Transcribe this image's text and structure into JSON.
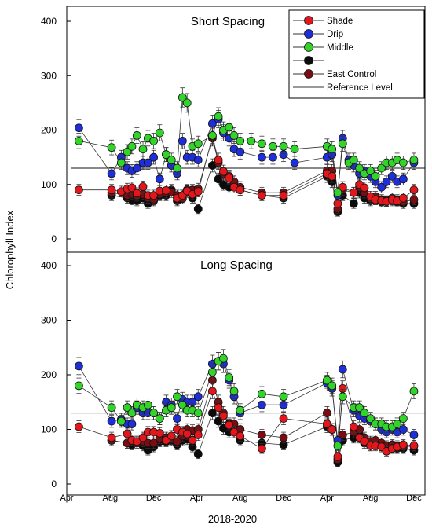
{
  "figure": {
    "ylabel": "Chlorophyll Index",
    "xlabel": "2018-2020",
    "x_tick_labels": [
      "Apr",
      "Aug",
      "Dec",
      "Apr",
      "Aug",
      "Dec",
      "Apr",
      "Aug",
      "Dec"
    ]
  },
  "legend": {
    "placement": "top-right of upper panel",
    "entries": [
      {
        "label": "Shade",
        "color": "#e3161b",
        "kind": "marker"
      },
      {
        "label": "Drip",
        "color": "#1f2fd8",
        "kind": "marker"
      },
      {
        "label": "Middle",
        "color": "#33d42a",
        "kind": "marker"
      },
      {
        "label": "",
        "color": "#0b0b0b",
        "kind": "marker"
      },
      {
        "label": "East Control",
        "color": "#7a0d12",
        "kind": "marker"
      },
      {
        "label": "Reference Level",
        "color": "#000000",
        "kind": "line"
      }
    ]
  },
  "chart_data": [
    {
      "type": "scatter",
      "title": "Short Spacing",
      "xlabel": "2018-2020",
      "ylabel": "Chlorophyll Index",
      "ylim": [
        0,
        420
      ],
      "yticks": [
        0,
        100,
        200,
        300,
        400
      ],
      "reference_level": 130,
      "x": [
        "2018-05-05",
        "2018-07-20",
        "2018-08-05",
        "2018-09-01",
        "2018-09-18",
        "2018-10-01",
        "2018-10-15",
        "2018-11-01",
        "2018-11-15",
        "2018-12-01",
        "2018-12-18",
        "2019-01-05",
        "2019-01-20",
        "2019-02-05",
        "2019-02-20",
        "2019-03-05",
        "2019-03-20",
        "2019-04-05",
        "2019-05-15",
        "2019-06-01",
        "2019-06-15",
        "2019-07-01",
        "2019-07-15",
        "2019-08-01",
        "2019-09-01",
        "2019-10-01",
        "2019-11-01",
        "2019-12-01",
        "2020-01-01",
        "2020-04-01",
        "2020-04-15",
        "2020-05-01",
        "2020-05-15",
        "2020-06-01",
        "2020-06-15",
        "2020-07-01",
        "2020-07-15",
        "2020-08-01",
        "2020-08-15",
        "2020-09-01",
        "2020-09-15",
        "2020-10-01",
        "2020-10-15",
        "2020-11-01",
        "2020-12-01"
      ],
      "series": [
        {
          "name": "Shade",
          "color": "#e3161b",
          "values": [
            90,
            null,
            90,
            87,
            92,
            94,
            84,
            96,
            80,
            80,
            88,
            89,
            null,
            75,
            80,
            88,
            82,
            87,
            188,
            145,
            124,
            112,
            95,
            90,
            null,
            80,
            null,
            80,
            null,
            120,
            115,
            65,
            95,
            null,
            85,
            100,
            94,
            78,
            72,
            70,
            69,
            72,
            70,
            75,
            90
          ]
        },
        {
          "name": "Drip",
          "color": "#1f2fd8",
          "values": [
            204,
            null,
            120,
            150,
            130,
            125,
            130,
            140,
            140,
            150,
            110,
            155,
            135,
            120,
            180,
            150,
            150,
            145,
            212,
            220,
            195,
            185,
            165,
            160,
            null,
            150,
            150,
            155,
            140,
            150,
            155,
            80,
            185,
            145,
            135,
            120,
            125,
            115,
            105,
            95,
            105,
            115,
            105,
            110,
            140
          ]
        },
        {
          "name": "Middle",
          "color": "#33d42a",
          "values": [
            180,
            null,
            168,
            140,
            160,
            170,
            190,
            165,
            185,
            180,
            195,
            155,
            145,
            130,
            260,
            250,
            170,
            175,
            190,
            225,
            200,
            205,
            190,
            180,
            180,
            175,
            170,
            170,
            165,
            170,
            165,
            85,
            175,
            140,
            145,
            130,
            120,
            125,
            115,
            130,
            140,
            140,
            145,
            140,
            145
          ]
        },
        {
          "name": "",
          "color": "#0b0b0b",
          "values": [
            null,
            null,
            80,
            null,
            75,
            72,
            70,
            75,
            65,
            70,
            80,
            80,
            90,
            70,
            80,
            90,
            75,
            55,
            135,
            110,
            100,
            95,
            105,
            90,
            null,
            80,
            null,
            75,
            null,
            115,
            105,
            50,
            80,
            null,
            65,
            85,
            75,
            70,
            72,
            68,
            69,
            70,
            68,
            65,
            65
          ]
        },
        {
          "name": "East Control",
          "color": "#7a0d12",
          "values": [
            null,
            null,
            85,
            null,
            80,
            82,
            79,
            82,
            75,
            72,
            82,
            85,
            86,
            80,
            74,
            86,
            90,
            92,
            185,
            140,
            120,
            115,
            105,
            95,
            null,
            85,
            null,
            85,
            null,
            125,
            125,
            55,
            90,
            null,
            85,
            95,
            85,
            75,
            78,
            72,
            70,
            75,
            72,
            68,
            72
          ]
        }
      ]
    },
    {
      "type": "scatter",
      "title": "Long Spacing",
      "xlabel": "2018-2020",
      "ylabel": "Chlorophyll Index",
      "ylim": [
        0,
        420
      ],
      "yticks": [
        0,
        100,
        200,
        300,
        400
      ],
      "reference_level": 130,
      "x": [
        "2018-05-05",
        "2018-07-20",
        "2018-08-05",
        "2018-09-01",
        "2018-09-18",
        "2018-10-01",
        "2018-10-15",
        "2018-11-01",
        "2018-11-15",
        "2018-12-01",
        "2018-12-18",
        "2019-01-05",
        "2019-01-20",
        "2019-02-05",
        "2019-02-20",
        "2019-03-05",
        "2019-03-20",
        "2019-04-05",
        "2019-05-15",
        "2019-06-01",
        "2019-06-15",
        "2019-07-01",
        "2019-07-15",
        "2019-08-01",
        "2019-09-01",
        "2019-10-01",
        "2019-11-01",
        "2019-12-01",
        "2020-01-01",
        "2020-04-01",
        "2020-04-15",
        "2020-05-01",
        "2020-05-15",
        "2020-06-01",
        "2020-06-15",
        "2020-07-01",
        "2020-07-15",
        "2020-08-01",
        "2020-08-15",
        "2020-09-01",
        "2020-09-15",
        "2020-10-01",
        "2020-10-15",
        "2020-11-01",
        "2020-12-01"
      ],
      "series": [
        {
          "name": "Shade",
          "color": "#e3161b",
          "values": [
            105,
            null,
            85,
            null,
            92,
            80,
            78,
            85,
            95,
            95,
            93,
            80,
            88,
            100,
            95,
            92,
            80,
            90,
            170,
            140,
            125,
            108,
            95,
            88,
            null,
            65,
            null,
            120,
            null,
            110,
            100,
            50,
            175,
            null,
            105,
            85,
            78,
            70,
            70,
            68,
            60,
            65,
            68,
            72,
            70
          ]
        },
        {
          "name": "Drip",
          "color": "#1f2fd8",
          "values": [
            216,
            null,
            115,
            118,
            110,
            110,
            140,
            130,
            130,
            130,
            120,
            150,
            145,
            120,
            155,
            150,
            150,
            160,
            220,
            225,
            220,
            190,
            160,
            130,
            null,
            145,
            null,
            145,
            null,
            185,
            175,
            80,
            210,
            null,
            135,
            125,
            120,
            115,
            110,
            100,
            95,
            100,
            95,
            100,
            90
          ]
        },
        {
          "name": "Middle",
          "color": "#33d42a",
          "values": [
            180,
            null,
            140,
            115,
            140,
            130,
            145,
            140,
            145,
            130,
            120,
            135,
            140,
            160,
            145,
            135,
            135,
            130,
            205,
            225,
            230,
            195,
            170,
            135,
            null,
            165,
            null,
            160,
            null,
            190,
            180,
            70,
            160,
            null,
            140,
            140,
            130,
            120,
            110,
            110,
            105,
            105,
            110,
            120,
            170
          ]
        },
        {
          "name": "",
          "color": "#0b0b0b",
          "values": [
            null,
            null,
            80,
            null,
            75,
            72,
            78,
            70,
            62,
            68,
            78,
            78,
            80,
            72,
            80,
            82,
            68,
            55,
            130,
            115,
            102,
            95,
            95,
            80,
            null,
            75,
            null,
            72,
            null,
            105,
            100,
            40,
            80,
            null,
            85,
            90,
            75,
            70,
            72,
            70,
            68,
            68,
            65,
            65,
            62
          ]
        },
        {
          "name": "East Control",
          "color": "#7a0d12",
          "values": [
            null,
            null,
            80,
            null,
            75,
            80,
            75,
            78,
            75,
            75,
            84,
            85,
            82,
            78,
            88,
            100,
            98,
            100,
            190,
            150,
            130,
            110,
            110,
            100,
            null,
            90,
            null,
            85,
            null,
            130,
            100,
            45,
            90,
            null,
            95,
            100,
            85,
            78,
            80,
            75,
            70,
            72,
            70,
            68,
            70
          ]
        }
      ]
    }
  ]
}
